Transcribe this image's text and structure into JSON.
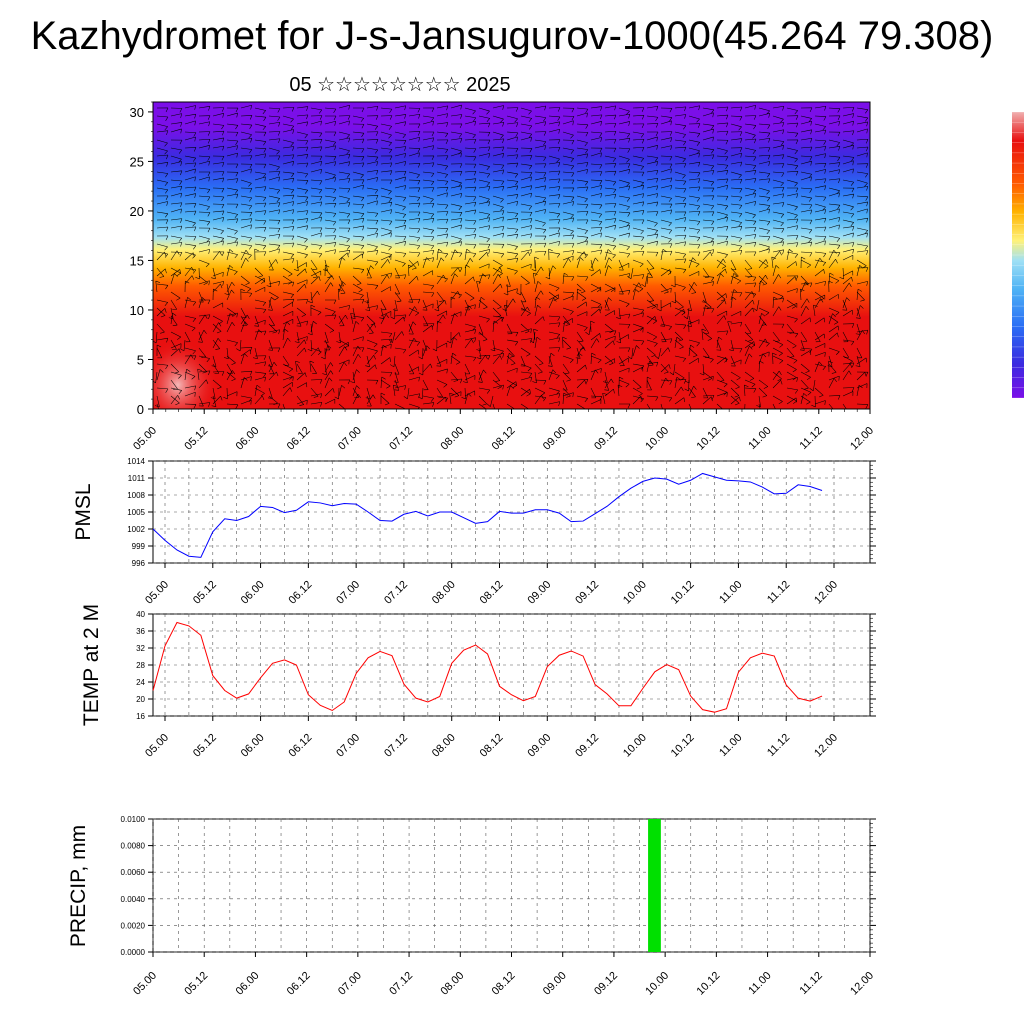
{
  "header": {
    "title": "Kazhydromet for J-s-Jansugurov-1000(45.264 79.308)",
    "subtitle": "05 ☆☆☆☆☆☆☆☆ 2025"
  },
  "chart_data": [
    {
      "type": "heatmap",
      "name_hint": "cross-section",
      "x_tick_labels": [
        "05.00",
        "05.12",
        "06.00",
        "06.12",
        "07.00",
        "07.12",
        "08.00",
        "08.12",
        "09.00",
        "09.12",
        "10.00",
        "10.12",
        "11.00",
        "11.12",
        "12.00"
      ],
      "y_ticks": [
        0,
        5,
        10,
        15,
        20,
        25,
        30
      ],
      "ylim": [
        0,
        31
      ],
      "colormap": [
        "#7b0fe8",
        "#3a2be0",
        "#2a6ef5",
        "#4fb3f5",
        "#9fe0f5",
        "#fff27a",
        "#ffb300",
        "#ff5a00",
        "#e81010",
        "#f0b0b0"
      ],
      "xlabel": "",
      "ylabel": ""
    },
    {
      "type": "line",
      "ylabel": "PMSL",
      "color": "#0000ff",
      "x_tick_labels": [
        "05.00",
        "05.12",
        "06.00",
        "06.12",
        "07.00",
        "07.12",
        "08.00",
        "08.12",
        "09.00",
        "09.12",
        "10.00",
        "10.12",
        "11.00",
        "11.12",
        "12.00"
      ],
      "y_ticks": [
        996,
        999,
        1002,
        1005,
        1008,
        1011,
        1014
      ],
      "ylim": [
        996,
        1014
      ],
      "x": [
        -3,
        0,
        3,
        6,
        9,
        12,
        15,
        18,
        21,
        24,
        27,
        30,
        33,
        36,
        39,
        42,
        45,
        48,
        51,
        54,
        57,
        60,
        63,
        66,
        69,
        72,
        75,
        78,
        81,
        84,
        87,
        90,
        93,
        96,
        99,
        102,
        105,
        108,
        111,
        114,
        117,
        120,
        123,
        126,
        129,
        132,
        135,
        138,
        141,
        144,
        147,
        150,
        153,
        156,
        159,
        162,
        165
      ],
      "values": [
        1002,
        1000,
        998.3,
        997.2,
        997,
        1001.5,
        1003.8,
        1003.5,
        1004.2,
        1006,
        1005.8,
        1004.9,
        1005.3,
        1006.8,
        1006.6,
        1006.1,
        1006.5,
        1006.4,
        1005,
        1003.5,
        1003.4,
        1004.6,
        1005.1,
        1004.3,
        1005,
        1005,
        1004,
        1003,
        1003.3,
        1005.1,
        1004.8,
        1004.8,
        1005.4,
        1005.4,
        1004.8,
        1003.3,
        1003.4,
        1004.7,
        1006,
        1007.7,
        1009.2,
        1010.4,
        1011,
        1010.8,
        1009.9,
        1010.6,
        1011.8,
        1011.2,
        1010.6,
        1010.5,
        1010.3,
        1009.4,
        1008.2,
        1008.3,
        1009.8,
        1009.5,
        1008.8
      ]
    },
    {
      "type": "line",
      "ylabel": "TEMP at 2 M",
      "color": "#ff0000",
      "x_tick_labels": [
        "05.00",
        "05.12",
        "06.00",
        "06.12",
        "07.00",
        "07.12",
        "08.00",
        "08.12",
        "09.00",
        "09.12",
        "10.00",
        "10.12",
        "11.00",
        "11.12",
        "12.00"
      ],
      "y_ticks": [
        16,
        20,
        24,
        28,
        32,
        36,
        40
      ],
      "ylim": [
        16,
        40
      ],
      "x": [
        -3,
        0,
        3,
        6,
        9,
        12,
        15,
        18,
        21,
        24,
        27,
        30,
        33,
        36,
        39,
        42,
        45,
        48,
        51,
        54,
        57,
        60,
        63,
        66,
        69,
        72,
        75,
        78,
        81,
        84,
        87,
        90,
        93,
        96,
        99,
        102,
        105,
        108,
        111,
        114,
        117,
        120,
        123,
        126,
        129,
        132,
        135,
        138,
        141,
        144,
        147,
        150,
        153,
        156,
        159,
        162,
        165
      ],
      "values": [
        22,
        32.5,
        38,
        37.2,
        35,
        25.5,
        22,
        20.2,
        21.2,
        25,
        28.4,
        29.2,
        28,
        21,
        18.5,
        17.3,
        19.3,
        26,
        29.7,
        31.2,
        30.2,
        23.5,
        20.2,
        19.3,
        20.6,
        28.4,
        31.5,
        32.7,
        30.6,
        23,
        21,
        19.6,
        20.6,
        27.6,
        30.3,
        31.3,
        30.1,
        23.4,
        21.2,
        18.4,
        18.4,
        22.5,
        26.4,
        28.1,
        26.9,
        20.7,
        17.5,
        16.9,
        17.7,
        26.3,
        29.7,
        30.8,
        30.1,
        23.3,
        20.2,
        19.5,
        20.7
      ]
    },
    {
      "type": "bar",
      "ylabel": "PRECIP, mm",
      "color": "#00e000",
      "x_tick_labels": [
        "05.00",
        "05.12",
        "06.00",
        "06.12",
        "07.00",
        "07.12",
        "08.00",
        "08.12",
        "09.00",
        "09.12",
        "10.00",
        "10.12",
        "11.00",
        "11.12",
        "12.00"
      ],
      "y_tick_labels": [
        "0.0000",
        "0.0020",
        "0.0040",
        "0.0060",
        "0.0080",
        "0.0100"
      ],
      "ylim": [
        0,
        0.01
      ],
      "bars": [
        {
          "x_start": 116,
          "x_end": 119,
          "value": 0.01
        }
      ]
    }
  ]
}
